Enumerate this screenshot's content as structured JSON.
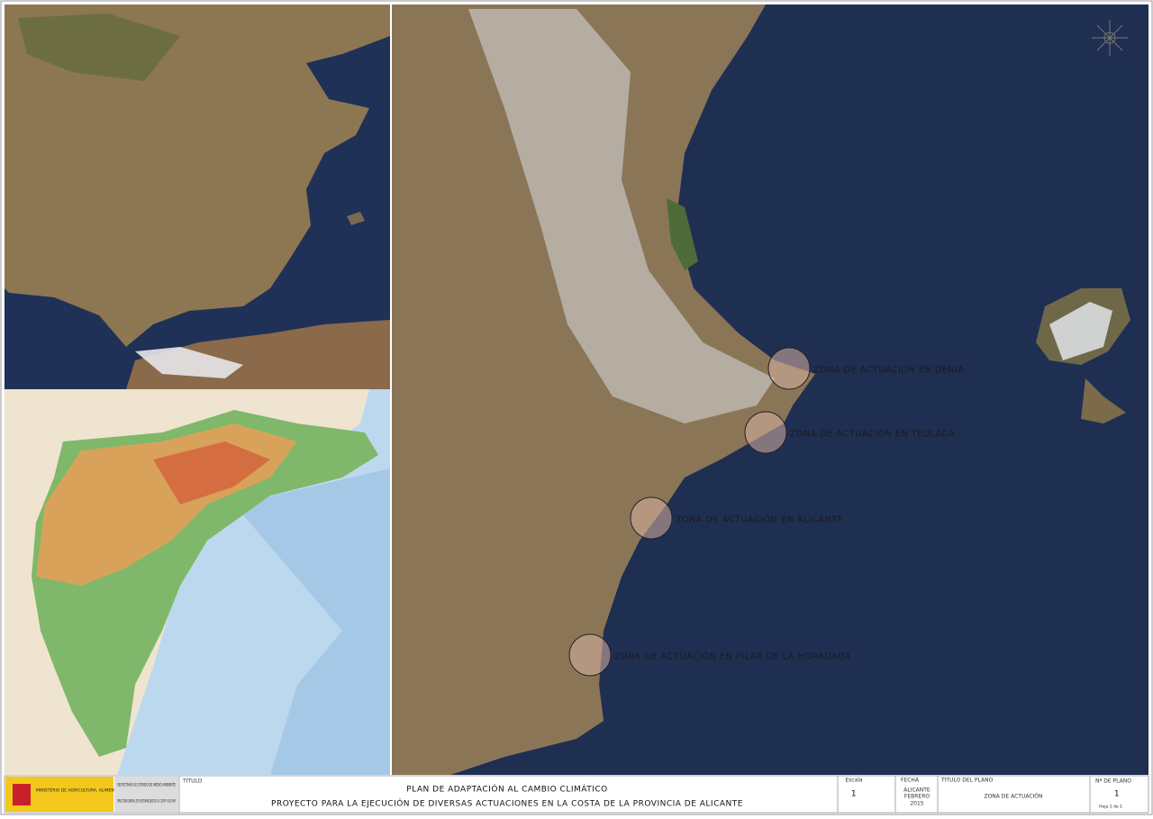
{
  "zones": [
    {
      "label": "ZONA DE ACTUACIÓN EN DENIA"
    },
    {
      "label": "ZONA DE ACTUACIÓN EN TEULADA"
    },
    {
      "label": "ZONA DE ACTUACIÓN EN ALICANTE"
    },
    {
      "label": "ZONA DE ACTUACIÓN EN PILAR DE LA HORADADA"
    }
  ],
  "logo": {
    "ministry": "MINISTERIO DE AGRICULTURA, ALIMENTACIÓN Y MEDIO AMBIENTE",
    "secretariat": "SECRETARÍA DE ESTADO DE MEDIO AMBIENTE",
    "directorate": "DIRECCIÓN GENERAL DE SOSTENIBILIDAD DE LA COSTA Y DEL MAR"
  },
  "title_block": {
    "title_label": "TITULO",
    "title_line1": "PLAN DE ADAPTACIÓN AL CAMBIO CLIMÁTICO",
    "title_line2": "PROYECTO PARA LA EJECUCIÓN DE DIVERSAS ACTUACIONES EN LA COSTA DE LA PROVINCIA DE ALICANTE",
    "scale_label": "Escala",
    "scale": "1",
    "date_label": "FECHA",
    "date_place": "ALICANTE",
    "date_month": "FEBRERO",
    "date_year": "2015",
    "plan_title_label": "TITULO DEL PLANO",
    "plan_title": "ZONA DE ACTUACIÓN",
    "plan_number_label": "Nº DE PLANO",
    "plan_number": "1",
    "sheet": "Hoja 1 de 1"
  }
}
